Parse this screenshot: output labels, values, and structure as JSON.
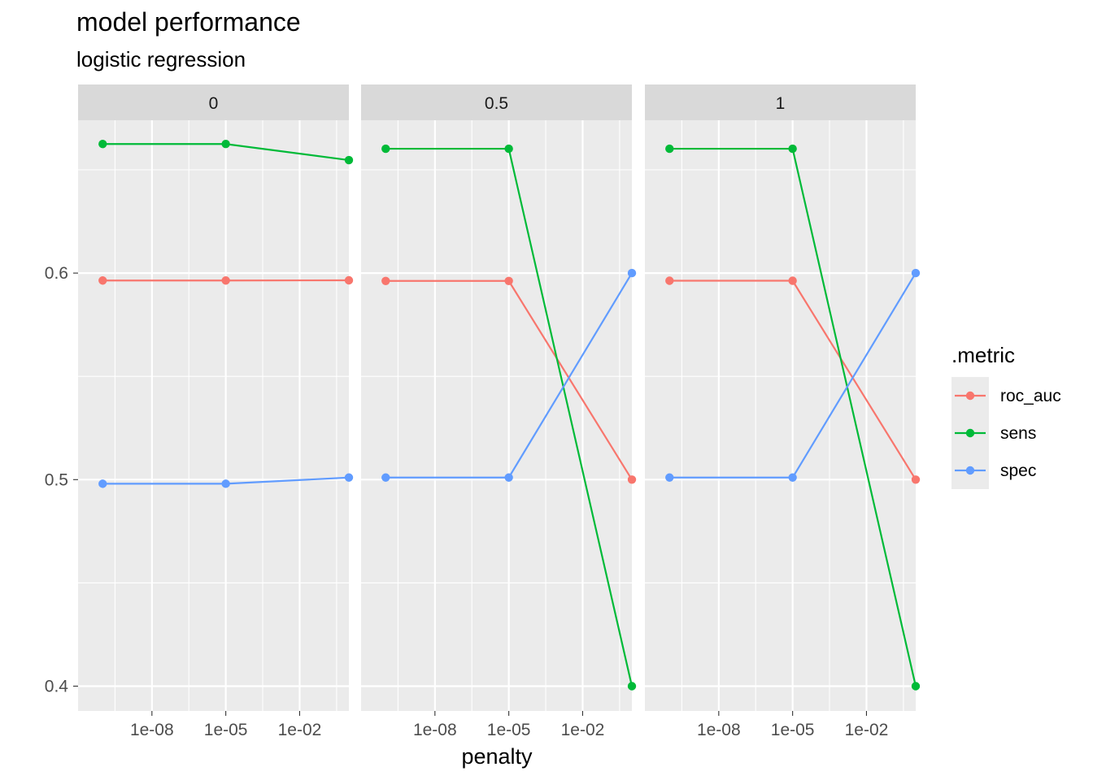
{
  "chart_data": {
    "type": "line",
    "title": "model performance",
    "subtitle": "logistic regression",
    "xlabel": "penalty",
    "ylabel": "",
    "x_scale": "log10",
    "x_ticks": [
      1e-08,
      1e-05,
      0.01
    ],
    "x_tick_labels": [
      "1e-08",
      "1e-05",
      "1e-02"
    ],
    "xlim": [
      1e-11,
      1
    ],
    "y_ticks": [
      0.4,
      0.5,
      0.6
    ],
    "y_tick_labels": [
      "0.4",
      "0.5",
      "0.6"
    ],
    "ylim": [
      0.388,
      0.674
    ],
    "grid": true,
    "legend": {
      "title": ".metric",
      "position": "right"
    },
    "facets": [
      {
        "label": "0",
        "x": [
          1e-10,
          1e-05,
          1
        ],
        "series": [
          {
            "name": "roc_auc",
            "color": "#F8766D",
            "values": [
              0.5964,
              0.5964,
              0.5965
            ]
          },
          {
            "name": "sens",
            "color": "#00BA38",
            "values": [
              0.6625,
              0.6625,
              0.6547
            ]
          },
          {
            "name": "spec",
            "color": "#619CFF",
            "values": [
              0.498,
              0.498,
              0.501
            ]
          }
        ]
      },
      {
        "label": "0.5",
        "x": [
          1e-10,
          1e-05,
          1
        ],
        "series": [
          {
            "name": "roc_auc",
            "color": "#F8766D",
            "values": [
              0.5962,
              0.5962,
              0.5
            ]
          },
          {
            "name": "sens",
            "color": "#00BA38",
            "values": [
              0.6602,
              0.6602,
              0.4
            ]
          },
          {
            "name": "spec",
            "color": "#619CFF",
            "values": [
              0.501,
              0.501,
              0.6
            ]
          }
        ]
      },
      {
        "label": "1",
        "x": [
          1e-10,
          1e-05,
          1
        ],
        "series": [
          {
            "name": "roc_auc",
            "color": "#F8766D",
            "values": [
              0.5963,
              0.5963,
              0.5
            ]
          },
          {
            "name": "sens",
            "color": "#00BA38",
            "values": [
              0.6602,
              0.6602,
              0.4
            ]
          },
          {
            "name": "spec",
            "color": "#619CFF",
            "values": [
              0.501,
              0.501,
              0.6
            ]
          }
        ]
      }
    ]
  }
}
